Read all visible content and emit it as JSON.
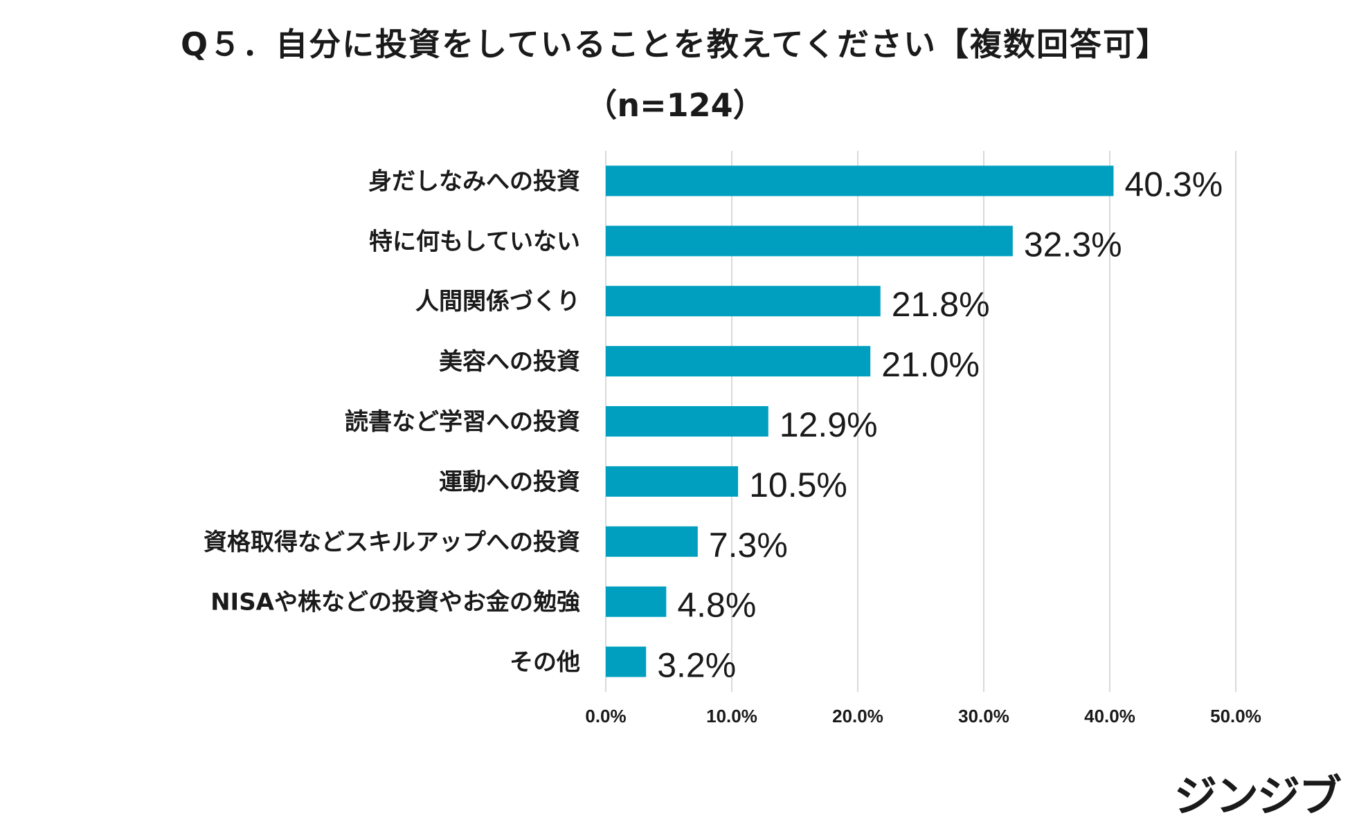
{
  "chart_data": {
    "type": "bar",
    "orientation": "horizontal",
    "title": "Q５．自分に投資をしていることを教えてください【複数回答可】",
    "subtitle": "（n=124）",
    "categories": [
      "身だしなみへの投資",
      "特に何もしていない",
      "人間関係づくり",
      "美容への投資",
      "読書など学習への投資",
      "運動への投資",
      "資格取得などスキルアップへの投資",
      "NISAや株などの投資やお金の勉強",
      "その他"
    ],
    "values": [
      40.3,
      32.3,
      21.8,
      21.0,
      12.9,
      10.5,
      7.3,
      4.8,
      3.2
    ],
    "value_labels": [
      "40.3%",
      "32.3%",
      "21.8%",
      "21.0%",
      "12.9%",
      "10.5%",
      "7.3%",
      "4.8%",
      "3.2%"
    ],
    "x_ticks": [
      "0.0%",
      "10.0%",
      "20.0%",
      "30.0%",
      "40.0%",
      "50.0%"
    ],
    "xlim": [
      0,
      50
    ],
    "xlabel": "",
    "ylabel": "",
    "grid": true,
    "bar_color": "#009fc0"
  },
  "brand": {
    "logo_text": "ジンジブ"
  }
}
